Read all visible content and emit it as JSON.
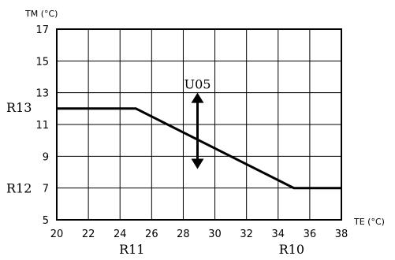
{
  "chart_data": {
    "type": "line",
    "ylabel": "TM (°C)",
    "xlabel": "TE (°C)",
    "xlim": [
      20,
      38
    ],
    "ylim": [
      5,
      17
    ],
    "grid": true,
    "x_ticks": [
      20,
      22,
      24,
      26,
      28,
      30,
      32,
      34,
      36,
      38
    ],
    "y_ticks": [
      5,
      7,
      9,
      11,
      13,
      15,
      17
    ],
    "series": [
      {
        "points": [
          [
            20,
            12
          ],
          [
            25,
            12
          ],
          [
            35,
            7
          ],
          [
            38,
            7
          ]
        ]
      }
    ],
    "annotations": {
      "r13": {
        "text": "R13",
        "y": 12
      },
      "r12": {
        "text": "R12",
        "y": 7
      },
      "r11": {
        "text": "R11",
        "x": 25
      },
      "r10": {
        "text": "R10",
        "x": 35
      },
      "u05": {
        "text": "U05",
        "x": 29,
        "y_from": 13,
        "y_to": 8.2
      }
    }
  }
}
